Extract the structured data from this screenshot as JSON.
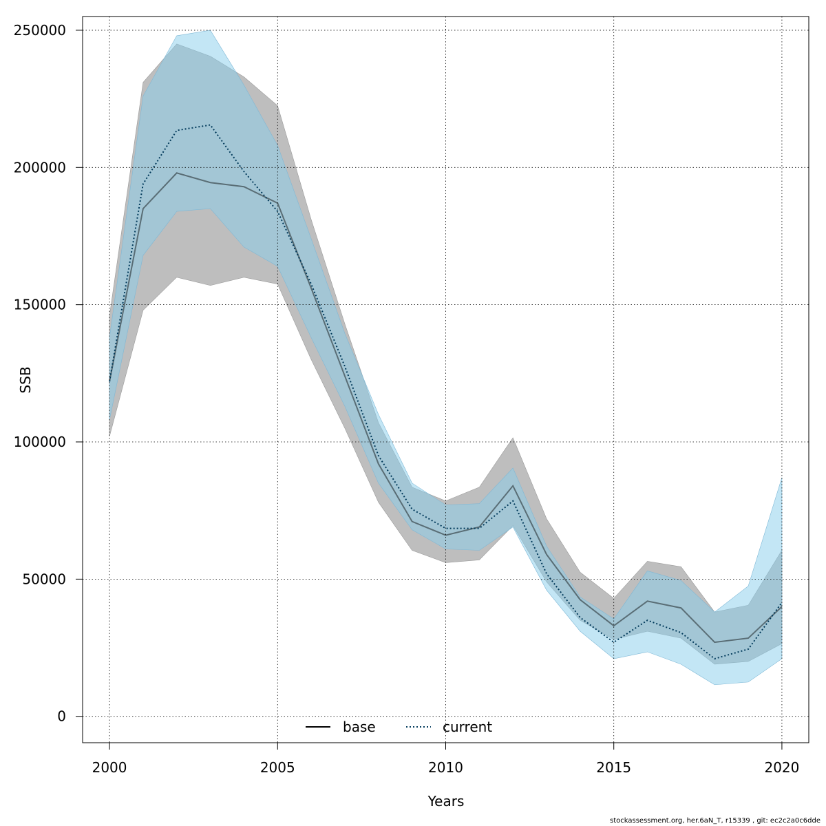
{
  "chart_data": {
    "type": "line",
    "xlabel": "Years",
    "ylabel": "SSB",
    "xlim": [
      1999.2,
      2020.8
    ],
    "ylim": [
      -9600,
      255000
    ],
    "x_ticks": [
      2000,
      2005,
      2010,
      2015,
      2020
    ],
    "y_ticks": [
      0,
      50000,
      100000,
      150000,
      200000,
      250000
    ],
    "grid": true,
    "legend_position": "bottom",
    "x": [
      2000,
      2001,
      2002,
      2003,
      2004,
      2005,
      2006,
      2007,
      2008,
      2009,
      2010,
      2011,
      2012,
      2013,
      2014,
      2015,
      2016,
      2017,
      2018,
      2019,
      2020
    ],
    "series": [
      {
        "name": "base",
        "line_style": "solid",
        "line_color": "#000000",
        "band_color": "#bebebe",
        "values": [
          122000,
          185000,
          198000,
          194500,
          193000,
          187000,
          156000,
          124000,
          92000,
          71000,
          66000,
          69000,
          84000,
          59000,
          42500,
          33000,
          42000,
          39500,
          27000,
          28500,
          40000
        ],
        "lower": [
          102000,
          148000,
          160000,
          157000,
          160000,
          157500,
          130000,
          105000,
          78000,
          60500,
          56000,
          57000,
          69500,
          49000,
          35000,
          28000,
          31000,
          28500,
          19000,
          20000,
          26500
        ],
        "upper": [
          146000,
          231000,
          245000,
          240500,
          233000,
          222500,
          181000,
          143000,
          107000,
          83500,
          78500,
          83500,
          101500,
          72000,
          52500,
          43000,
          56500,
          54500,
          38000,
          40500,
          60500
        ]
      },
      {
        "name": "current",
        "line_style": "dotted",
        "line_color": "#00395a",
        "band_color": "#87ceeb",
        "values": [
          122000,
          194000,
          213500,
          215500,
          198500,
          184000,
          157500,
          127500,
          95000,
          75500,
          68500,
          68500,
          78500,
          52000,
          36000,
          27000,
          35000,
          30500,
          21000,
          24500,
          41500
        ],
        "lower": [
          108000,
          168000,
          184000,
          185000,
          171000,
          164000,
          138000,
          113000,
          85000,
          68000,
          61000,
          60500,
          69000,
          46000,
          31000,
          21000,
          23500,
          19000,
          11500,
          12500,
          21000
        ],
        "upper": [
          138000,
          226000,
          248000,
          250000,
          230000,
          208000,
          174000,
          139500,
          110000,
          85000,
          77000,
          77500,
          90500,
          62000,
          43500,
          35500,
          53000,
          49500,
          38000,
          47500,
          87000
        ]
      }
    ]
  },
  "footnote": "stockassessment.org, her.6aN_T, r15339 , git: ec2c2a0c6dde"
}
